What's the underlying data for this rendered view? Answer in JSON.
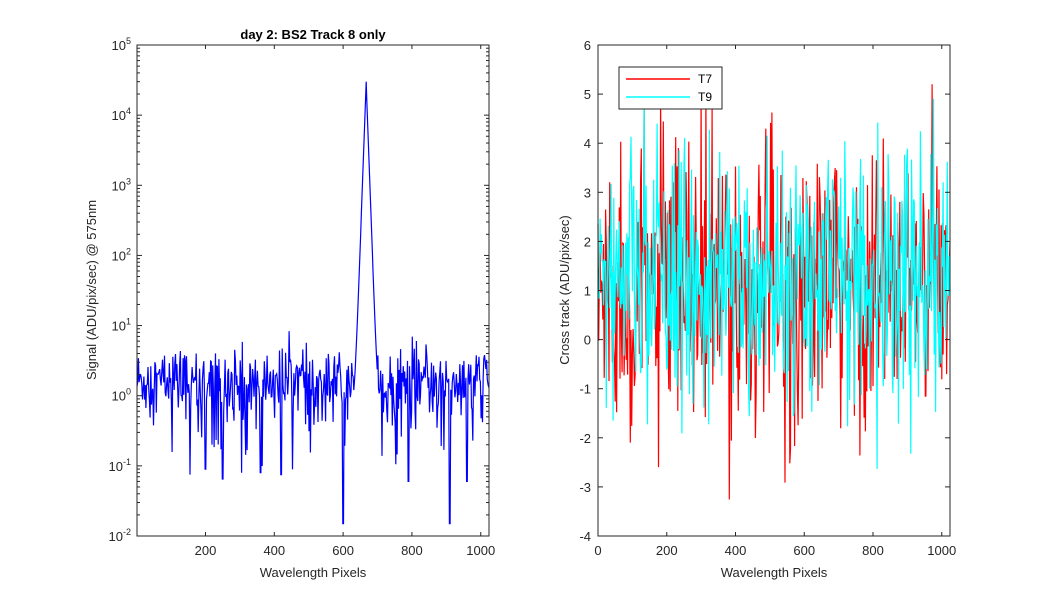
{
  "chart_data": [
    {
      "type": "line",
      "title": "day 2: BS2   Track 8 only",
      "xlabel": "Wavelength Pixels",
      "ylabel": "Signal (ADU/pix/sec) @ 575nm",
      "xlim": [
        1,
        1024
      ],
      "ylim": [
        0.01,
        100000
      ],
      "yscale": "log",
      "xticks": [
        200,
        400,
        600,
        800,
        1000
      ],
      "yticks": [
        {
          "base": "10",
          "exp": "-2"
        },
        {
          "base": "10",
          "exp": "-1"
        },
        {
          "base": "10",
          "exp": "0"
        },
        {
          "base": "10",
          "exp": "1"
        },
        {
          "base": "10",
          "exp": "2"
        },
        {
          "base": "10",
          "exp": "3"
        },
        {
          "base": "10",
          "exp": "4"
        },
        {
          "base": "10",
          "exp": "5"
        }
      ],
      "series": [
        {
          "color": "#0000ff",
          "description": "noisy baseline about 1 to 5 with dips down to ~0.06-0.015, single sharp peak",
          "baseline_range": [
            0.3,
            5
          ],
          "peak": {
            "x": 667,
            "y": 30000
          },
          "notable_dips": [
            {
              "x": 155,
              "y": 0.075
            },
            {
              "x": 200,
              "y": 0.09
            },
            {
              "x": 250,
              "y": 0.065
            },
            {
              "x": 305,
              "y": 0.08
            },
            {
              "x": 360,
              "y": 0.08
            },
            {
              "x": 420,
              "y": 0.075
            },
            {
              "x": 600,
              "y": 0.015
            },
            {
              "x": 790,
              "y": 0.06
            },
            {
              "x": 910,
              "y": 0.015
            },
            {
              "x": 960,
              "y": 0.06
            }
          ]
        }
      ],
      "grid": false
    },
    {
      "type": "line",
      "title": "",
      "xlabel": "Wavelength Pixels",
      "ylabel": "Cross track (ADU/pix/sec)",
      "xlim": [
        0,
        1024
      ],
      "ylim": [
        -4,
        6
      ],
      "xticks": [
        0,
        200,
        400,
        600,
        800,
        1000
      ],
      "yticks": [
        -4,
        -3,
        -2,
        -1,
        0,
        1,
        2,
        3,
        4,
        5,
        6
      ],
      "legend_position": "top-left",
      "series": [
        {
          "name": "T7",
          "color": "#ff0000",
          "mean": 1.0,
          "range": [
            -3.8,
            5.2
          ]
        },
        {
          "name": "T9",
          "color": "#00ffff",
          "mean": 1.3,
          "range": [
            -3.6,
            5.4
          ]
        }
      ],
      "grid": false
    }
  ]
}
